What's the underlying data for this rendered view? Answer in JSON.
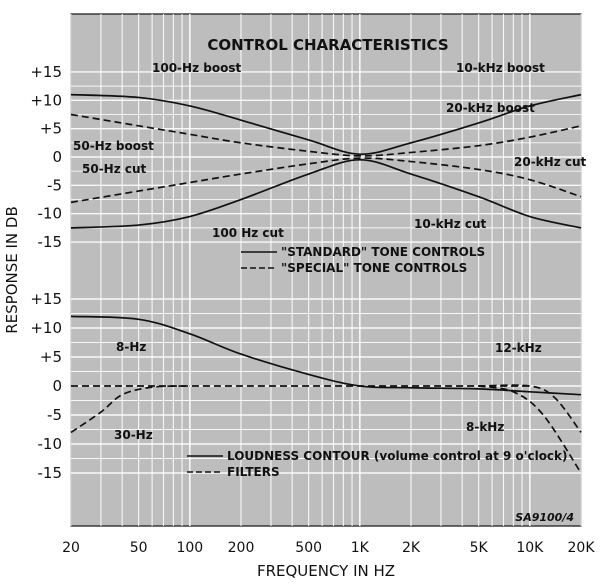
{
  "chart_data": {
    "type": "line",
    "title": "CONTROL CHARACTERISTICS",
    "xlabel": "FREQUENCY IN HZ",
    "ylabel": "RESPONSE IN DB",
    "x_scale": "log",
    "xlim": [
      20,
      20000
    ],
    "x_ticks": [
      20,
      50,
      100,
      200,
      500,
      1000,
      2000,
      5000,
      10000,
      20000
    ],
    "x_tick_labels": [
      "20",
      "50",
      "100",
      "200",
      "500",
      "1K",
      "2K",
      "5K",
      "10K",
      "20K"
    ],
    "grid": true,
    "figure_code": "SA9100/4",
    "panels": [
      {
        "id": "tone",
        "ylim": [
          -15,
          15
        ],
        "y_ticks": [
          "+15",
          "+10",
          "+5",
          "0",
          "-5",
          "-10",
          "-15"
        ],
        "legend": [
          {
            "label": "\"STANDARD\" TONE CONTROLS",
            "style": "solid"
          },
          {
            "label": "\"SPECIAL\" TONE CONTROLS",
            "style": "dashed"
          }
        ],
        "annotations": [
          "100-Hz boost",
          "50-Hz boost",
          "50-Hz cut",
          "100 Hz cut",
          "10-kHz boost",
          "20-kHz boost",
          "20-kHz cut",
          "10-kHz cut"
        ],
        "series": [
          {
            "style": "solid",
            "x": [
              20,
              50,
              100,
              200,
              500,
              1000,
              2000,
              5000,
              10000,
              20000
            ],
            "y": [
              11,
              10.5,
              9,
              6.5,
              3,
              0.5,
              2.5,
              6,
              9,
              11
            ]
          },
          {
            "style": "solid",
            "x": [
              20,
              50,
              100,
              200,
              500,
              1000,
              2000,
              5000,
              10000,
              20000
            ],
            "y": [
              -12.5,
              -12,
              -10.5,
              -7.5,
              -3,
              -0.5,
              -3,
              -7,
              -10.5,
              -12.5
            ]
          },
          {
            "style": "dashed",
            "x": [
              20,
              50,
              100,
              200,
              500,
              1000,
              2000,
              5000,
              10000,
              20000
            ],
            "y": [
              7.5,
              5.5,
              4,
              2.5,
              1,
              0.2,
              0.8,
              2,
              3.5,
              5.5
            ]
          },
          {
            "style": "dashed",
            "x": [
              20,
              50,
              100,
              200,
              500,
              1000,
              2000,
              5000,
              10000,
              20000
            ],
            "y": [
              -8,
              -6,
              -4.5,
              -3,
              -1.2,
              -0.2,
              -0.8,
              -2.2,
              -4,
              -7
            ]
          }
        ]
      },
      {
        "id": "loudness",
        "ylim": [
          -15,
          15
        ],
        "y_ticks": [
          "+15",
          "+10",
          "+5",
          "0",
          "-5",
          "-10",
          "-15"
        ],
        "legend": [
          {
            "label": "LOUDNESS CONTOUR (volume control at 9 o'clock)",
            "style": "solid"
          },
          {
            "label": "FILTERS",
            "style": "dashed"
          }
        ],
        "annotations": [
          "8-Hz",
          "30-Hz",
          "12-kHz",
          "8-kHz"
        ],
        "series": [
          {
            "style": "solid",
            "x": [
              20,
              50,
              100,
              200,
              500,
              1000,
              2000,
              5000,
              10000,
              20000
            ],
            "y": [
              12,
              11.5,
              9,
              5.5,
              2,
              0,
              -0.3,
              -0.5,
              -1,
              -1.5
            ]
          },
          {
            "style": "dashed",
            "x": [
              20,
              30,
              40,
              60,
              100,
              1000,
              5000,
              10000
            ],
            "y": [
              0,
              0,
              0,
              0,
              0,
              0,
              0,
              0
            ]
          },
          {
            "style": "dashed",
            "x": [
              20,
              30,
              40,
              60,
              100
            ],
            "y": [
              -8,
              -4.5,
              -1.5,
              -0.2,
              0
            ]
          },
          {
            "style": "dashed",
            "x": [
              5000,
              8000,
              12000,
              20000
            ],
            "y": [
              0,
              -1,
              -5,
              -15
            ]
          },
          {
            "style": "dashed",
            "x": [
              5000,
              10000,
              14000,
              20000
            ],
            "y": [
              0,
              0,
              -2,
              -8
            ]
          }
        ]
      }
    ]
  }
}
